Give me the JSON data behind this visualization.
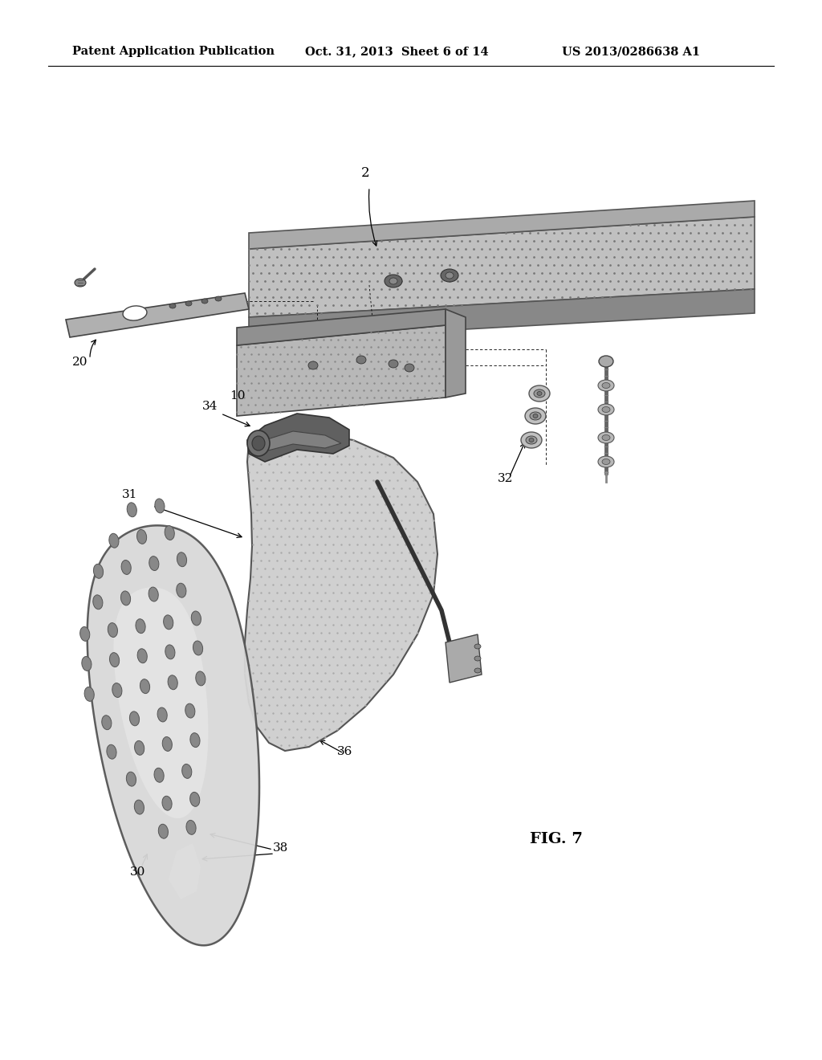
{
  "header_left": "Patent Application Publication",
  "header_mid": "Oct. 31, 2013  Sheet 6 of 14",
  "header_right": "US 2013/0286638 A1",
  "fig_label": "FIG. 7",
  "background": "#ffffff",
  "text_color": "#000000",
  "header_fontsize": 10.5,
  "label_fontsize": 11,
  "fig_fontsize": 14,
  "gray_light": "#c8c8c8",
  "gray_mid": "#aaaaaa",
  "gray_dark": "#888888",
  "gray_vdark": "#555555",
  "gray_halftone": "#b0b0b0"
}
